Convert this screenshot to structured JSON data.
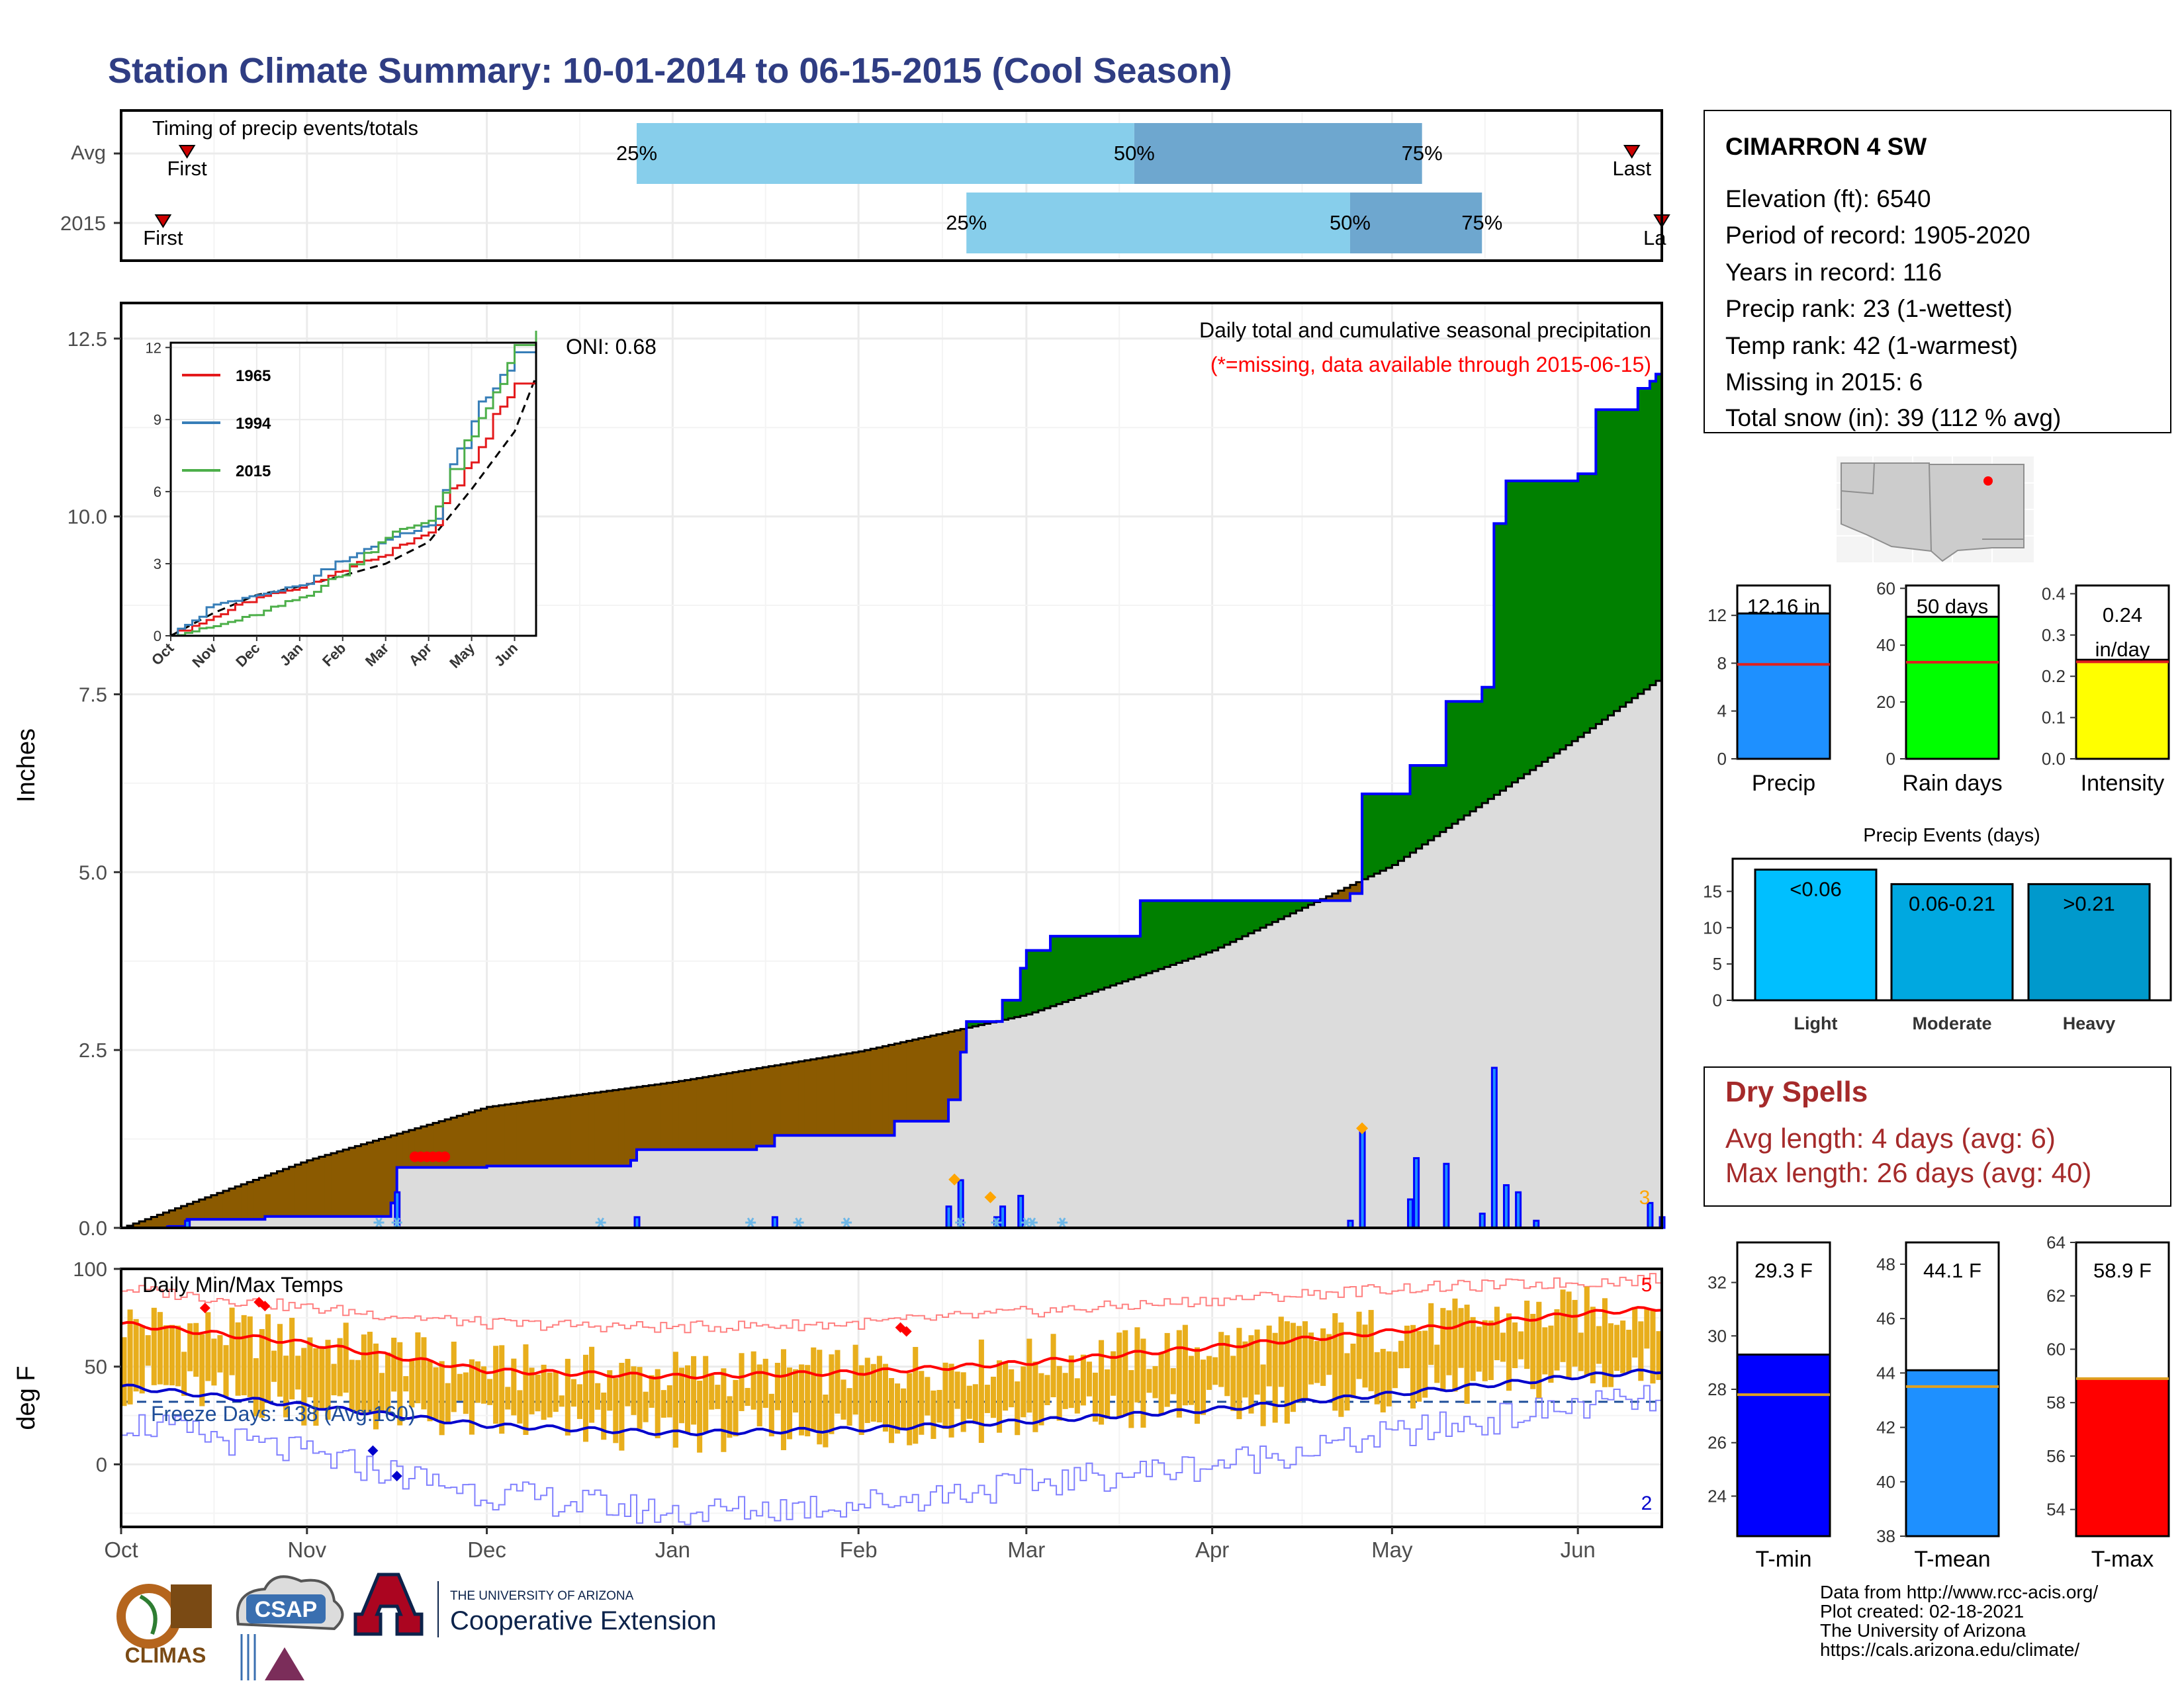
{
  "title": "Station Climate Summary: 10-01-2014 to 06-15-2015 (Cool Season)",
  "colors": {
    "title": "#2f3d83",
    "light_blue": "#87ceeb",
    "mid_blue": "#6ea7cf",
    "brown": "#8b5a00",
    "green": "#008000",
    "cum_line": "#0000ff",
    "normal_fill": "#dcdcdc",
    "orange": "#e8ae1c",
    "red": "#ff0000",
    "navy": "#0000cc",
    "precip_bar": "#1e90ff",
    "rain_days_bar": "#00ff00",
    "intensity_bar": "#ffff00",
    "light_bar": "#00bfff",
    "moderate_bar": "#00a8e0",
    "heavy_bar": "#0099cc",
    "tmin_bar": "#0000ff",
    "tmean_bar": "#1e90ff",
    "tmax_bar": "#ff0000",
    "dry_spell_red": "#a52a2a"
  },
  "timing": {
    "label": "Timing of precip events/totals",
    "rows": [
      "Avg",
      "2015"
    ],
    "avg": {
      "p25": "2014-12-26",
      "p50": "2015-03-19",
      "p75": "2015-05-06",
      "first": "2014-10-12",
      "last": "2015-06-10"
    },
    "y2015": {
      "p25": "2015-02-19",
      "p50": "2015-04-24",
      "p75": "2015-05-16",
      "first": "2014-10-08",
      "last": "2015-06-15"
    },
    "pct_labels": [
      "25%",
      "50%",
      "75%"
    ],
    "first_label": "First",
    "last_label": "Last",
    "last_label_trunc": "La"
  },
  "precip_chart": {
    "ylabel": "Inches",
    "yticks": [
      "0.0",
      "2.5",
      "5.0",
      "7.5",
      "10.0",
      "12.5"
    ],
    "ylim": [
      0,
      13.0
    ],
    "caption1": "Daily total and cumulative seasonal precipitation",
    "caption2": "(*=missing, data available through 2015-06-15)",
    "oni_label": "ONI: 0.68",
    "snow_count": "3",
    "normal_cumulative": [
      [
        "2014-10-01",
        0
      ],
      [
        "2014-11-01",
        0.95
      ],
      [
        "2014-12-01",
        1.7
      ],
      [
        "2015-01-01",
        2.05
      ],
      [
        "2015-02-01",
        2.48
      ],
      [
        "2015-03-01",
        3.0
      ],
      [
        "2015-04-01",
        3.9
      ],
      [
        "2015-05-01",
        5.1
      ],
      [
        "2015-06-01",
        6.9
      ],
      [
        "2015-06-15",
        7.75
      ]
    ],
    "observed_cumulative": [
      [
        "2014-10-01",
        0
      ],
      [
        "2014-10-09",
        0.02
      ],
      [
        "2014-10-12",
        0.12
      ],
      [
        "2014-10-25",
        0.16
      ],
      [
        "2014-11-15",
        0.35
      ],
      [
        "2014-11-16",
        0.85
      ],
      [
        "2014-12-01",
        0.87
      ],
      [
        "2014-12-25",
        0.95
      ],
      [
        "2014-12-26",
        1.1
      ],
      [
        "2015-01-15",
        1.15
      ],
      [
        "2015-01-18",
        1.3
      ],
      [
        "2015-02-07",
        1.5
      ],
      [
        "2015-02-16",
        1.8
      ],
      [
        "2015-02-18",
        2.47
      ],
      [
        "2015-02-19",
        2.9
      ],
      [
        "2015-02-25",
        3.2
      ],
      [
        "2015-02-28",
        3.65
      ],
      [
        "2015-03-01",
        3.9
      ],
      [
        "2015-03-05",
        4.1
      ],
      [
        "2015-03-20",
        4.6
      ],
      [
        "2015-04-19",
        4.6
      ],
      [
        "2015-04-24",
        4.7
      ],
      [
        "2015-04-26",
        6.1
      ],
      [
        "2015-05-04",
        6.5
      ],
      [
        "2015-05-10",
        7.4
      ],
      [
        "2015-05-16",
        7.6
      ],
      [
        "2015-05-18",
        9.9
      ],
      [
        "2015-05-20",
        10.5
      ],
      [
        "2015-06-01",
        10.6
      ],
      [
        "2015-06-04",
        11.5
      ],
      [
        "2015-06-11",
        11.8
      ],
      [
        "2015-06-13",
        11.9
      ],
      [
        "2015-06-14",
        12.0
      ],
      [
        "2015-06-15",
        12.16
      ]
    ],
    "daily_precip": [
      [
        "2014-10-09",
        0.02
      ],
      [
        "2014-10-12",
        0.1
      ],
      [
        "2014-11-16",
        0.5
      ],
      [
        "2014-12-26",
        0.15
      ],
      [
        "2015-01-18",
        0.15
      ],
      [
        "2015-02-16",
        0.3
      ],
      [
        "2015-02-18",
        0.67
      ],
      [
        "2015-02-24",
        0.15
      ],
      [
        "2015-02-25",
        0.3
      ],
      [
        "2015-02-28",
        0.45
      ],
      [
        "2015-04-24",
        0.1
      ],
      [
        "2015-04-26",
        1.4
      ],
      [
        "2015-05-04",
        0.4
      ],
      [
        "2015-05-05",
        0.98
      ],
      [
        "2015-05-10",
        0.9
      ],
      [
        "2015-05-16",
        0.2
      ],
      [
        "2015-05-18",
        2.25
      ],
      [
        "2015-05-20",
        0.6
      ],
      [
        "2015-05-22",
        0.5
      ],
      [
        "2015-05-25",
        0.1
      ],
      [
        "2015-06-13",
        0.35
      ],
      [
        "2015-06-15",
        0.15
      ]
    ],
    "snow_days": [
      "2014-11-13",
      "2014-11-16",
      "2014-12-20",
      "2015-01-14",
      "2015-01-22",
      "2015-01-30",
      "2015-02-18",
      "2015-02-24",
      "2015-03-01",
      "2015-03-02",
      "2015-03-07"
    ],
    "large_events": [
      [
        "2015-02-17",
        0.68
      ],
      [
        "2015-02-23",
        0.43
      ],
      [
        "2015-04-26",
        1.4
      ]
    ],
    "missing": [
      "2014-11-19",
      "2014-11-20",
      "2014-11-21",
      "2014-11-22",
      "2014-11-23",
      "2014-11-24"
    ]
  },
  "inset": {
    "yticks": [
      "0",
      "3",
      "6",
      "9",
      "12"
    ],
    "xticks": [
      "Oct",
      "Nov",
      "Dec",
      "Jan",
      "Feb",
      "Mar",
      "Apr",
      "May",
      "Jun"
    ],
    "series": [
      {
        "name": "1965",
        "color": "#e41a1c",
        "values": [
          0,
          0.8,
          1.6,
          2.0,
          2.8,
          3.4,
          4.3,
          7.5,
          10.5
        ]
      },
      {
        "name": "1994",
        "color": "#377eb8",
        "values": [
          0,
          1.3,
          1.7,
          2.1,
          3.2,
          4.0,
          4.6,
          9.0,
          11.8
        ]
      },
      {
        "name": "2015",
        "color": "#4daf4a",
        "values": [
          0,
          0.4,
          0.9,
          1.6,
          2.6,
          4.2,
          4.8,
          8.3,
          12.1
        ]
      }
    ],
    "normal": [
      0,
      0.95,
      1.7,
      2.05,
      2.5,
      3.0,
      3.9,
      6.1,
      8.5
    ]
  },
  "temp_chart": {
    "ylabel": "deg F",
    "label": "Daily Min/Max Temps",
    "yticks": [
      "0",
      "50",
      "100"
    ],
    "ylim": [
      -32,
      100
    ],
    "freeze_label": "Freeze Days: 138 (Avg:160)",
    "freeze_line": 32,
    "hot_count": "5",
    "cold_count": "2",
    "xticks": [
      "Oct",
      "Nov",
      "Dec",
      "Jan",
      "Feb",
      "Mar",
      "Apr",
      "May",
      "Jun"
    ],
    "avg_max": [
      [
        "2014-10-01",
        72
      ],
      [
        "2014-11-01",
        62
      ],
      [
        "2014-12-01",
        48
      ],
      [
        "2015-01-01",
        45
      ],
      [
        "2015-02-01",
        47
      ],
      [
        "2015-03-01",
        52
      ],
      [
        "2015-04-01",
        60
      ],
      [
        "2015-05-01",
        68
      ],
      [
        "2015-06-01",
        77
      ],
      [
        "2015-06-15",
        80
      ]
    ],
    "avg_min": [
      [
        "2014-10-01",
        40
      ],
      [
        "2014-11-01",
        30
      ],
      [
        "2014-12-01",
        20
      ],
      [
        "2015-01-01",
        16
      ],
      [
        "2015-02-01",
        18
      ],
      [
        "2015-03-01",
        22
      ],
      [
        "2015-04-01",
        28
      ],
      [
        "2015-05-01",
        36
      ],
      [
        "2015-06-01",
        45
      ],
      [
        "2015-06-15",
        48
      ]
    ],
    "record_max": [
      [
        "2014-10-01",
        90
      ],
      [
        "2014-11-01",
        80
      ],
      [
        "2014-12-01",
        72
      ],
      [
        "2015-01-01",
        70
      ],
      [
        "2015-02-01",
        72
      ],
      [
        "2015-03-01",
        78
      ],
      [
        "2015-04-01",
        84
      ],
      [
        "2015-05-01",
        90
      ],
      [
        "2015-06-01",
        93
      ],
      [
        "2015-06-15",
        95
      ]
    ],
    "record_min": [
      [
        "2014-10-01",
        22
      ],
      [
        "2014-11-01",
        5
      ],
      [
        "2014-12-01",
        -15
      ],
      [
        "2015-01-01",
        -25
      ],
      [
        "2015-02-01",
        -20
      ],
      [
        "2015-03-01",
        -10
      ],
      [
        "2015-04-01",
        0
      ],
      [
        "2015-05-01",
        15
      ],
      [
        "2015-06-01",
        30
      ],
      [
        "2015-06-15",
        33
      ]
    ],
    "record_high_marks": [
      [
        "2014-10-15",
        80
      ],
      [
        "2014-10-24",
        83
      ],
      [
        "2014-10-25",
        81
      ],
      [
        "2015-02-08",
        70
      ],
      [
        "2015-02-09",
        68
      ]
    ],
    "record_low_marks": [
      [
        "2014-11-12",
        7
      ],
      [
        "2014-11-16",
        -6
      ]
    ]
  },
  "station_info": {
    "name": "CIMARRON 4 SW",
    "lines": [
      "Elevation (ft): 6540",
      "Period of record: 1905-2020",
      "Years in record: 116",
      "Precip rank: 23 (1-wettest)",
      "Temp rank: 42 (1-warmest)",
      "Missing in 2015: 6",
      "Total snow (in): 39 (112 % avg)"
    ]
  },
  "summary_bars": [
    {
      "label": "Precip",
      "value_label": "12.16 in",
      "value": 12.16,
      "avg": 7.9,
      "yticks": [
        "0",
        "4",
        "8",
        "12"
      ],
      "ymax": 14.5,
      "color": "#1e90ff"
    },
    {
      "label": "Rain days",
      "value_label": "50 days",
      "value": 50,
      "avg": 34,
      "yticks": [
        "0",
        "20",
        "40",
        "60"
      ],
      "ymax": 61,
      "color": "#00ff00"
    },
    {
      "label": "Intensity",
      "value_label": "0.24",
      "value_label2": "in/day",
      "value": 0.24,
      "avg": 0.235,
      "yticks": [
        "0.0",
        "0.1",
        "0.2",
        "0.3",
        "0.4"
      ],
      "ymax": 0.42,
      "color": "#ffff00"
    }
  ],
  "precip_events": {
    "title": "Precip Events (days)",
    "yticks": [
      "0",
      "5",
      "10",
      "15"
    ],
    "ymax": 18,
    "bars": [
      {
        "label": "Light",
        "value_label": "<0.06",
        "value": 18,
        "color": "#00bfff"
      },
      {
        "label": "Moderate",
        "value_label": "0.06-0.21",
        "value": 16,
        "color": "#00a8e0"
      },
      {
        "label": "Heavy",
        "value_label": ">0.21",
        "value": 16,
        "color": "#0099cc"
      }
    ]
  },
  "dry_spells": {
    "title": "Dry Spells",
    "line1": "Avg length: 4 days (avg: 6)",
    "line2": "Max length: 26 days (avg: 40)"
  },
  "temp_bars": [
    {
      "label": "T-min",
      "value_label": "29.3 F",
      "value": 29.3,
      "avg": 27.8,
      "ymin": 22.5,
      "ymax": 33.5,
      "yticks": [
        "24",
        "26",
        "28",
        "30",
        "32"
      ],
      "color": "#0000ff"
    },
    {
      "label": "T-mean",
      "value_label": "44.1 F",
      "value": 44.1,
      "avg": 43.5,
      "ymin": 38,
      "ymax": 48.8,
      "yticks": [
        "38",
        "40",
        "42",
        "44",
        "46",
        "48"
      ],
      "color": "#1e90ff"
    },
    {
      "label": "T-max",
      "value_label": "58.9 F",
      "value": 58.9,
      "avg": 58.9,
      "ymin": 53,
      "ymax": 64,
      "yticks": [
        "54",
        "56",
        "58",
        "60",
        "62",
        "64"
      ],
      "color": "#ff0000"
    }
  ],
  "logos": {
    "climas": "CLIMAS",
    "csap": "CSAP",
    "ua_small": "THE UNIVERSITY OF ARIZONA",
    "coop": "Cooperative Extension"
  },
  "footer": [
    "Data from http://www.rcc-acis.org/",
    "Plot created: 02-18-2021",
    "The University of Arizona",
    "https://cals.arizona.edu/climate/"
  ]
}
